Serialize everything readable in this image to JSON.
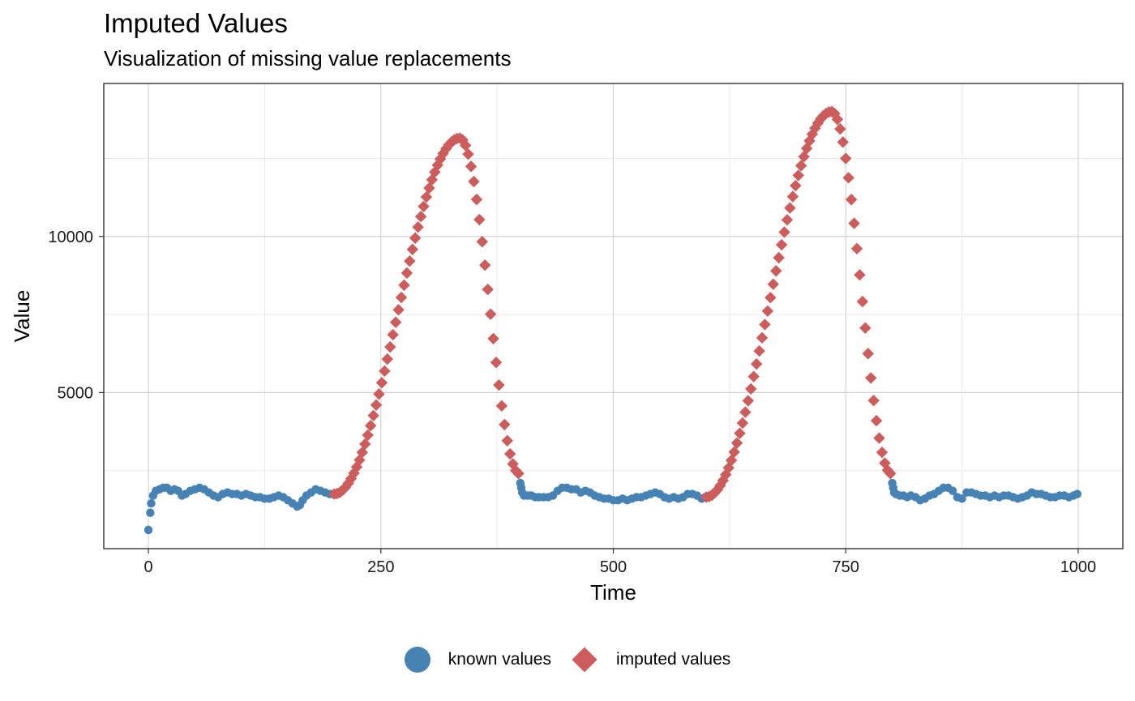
{
  "chart_data": {
    "type": "scatter",
    "title": "Imputed Values",
    "subtitle": "Visualization of missing value replacements",
    "xlabel": "Time",
    "ylabel": "Value",
    "xlim": [
      -48,
      1048
    ],
    "ylim": [
      0,
      14900
    ],
    "xticks": [
      0,
      250,
      500,
      750,
      1000
    ],
    "xtick_labels": [
      "0",
      "250",
      "500",
      "750",
      "1000"
    ],
    "yticks": [
      5000,
      10000
    ],
    "ytick_labels": [
      "5000",
      "10000"
    ],
    "grid": true,
    "legend_position": "bottom",
    "series": [
      {
        "name": "known values",
        "marker": "circle",
        "color": "#4682B4",
        "x": [
          0,
          2,
          3,
          5,
          8,
          12,
          16,
          20,
          24,
          28,
          32,
          36,
          40,
          45,
          50,
          55,
          60,
          65,
          70,
          75,
          80,
          85,
          90,
          95,
          100,
          105,
          110,
          115,
          120,
          125,
          130,
          135,
          140,
          145,
          150,
          155,
          160,
          163,
          166,
          170,
          175,
          180,
          185,
          190,
          195,
          199,
          400,
          401,
          402,
          404,
          408,
          412,
          416,
          420,
          425,
          430,
          435,
          440,
          445,
          450,
          455,
          460,
          465,
          470,
          475,
          480,
          485,
          490,
          495,
          500,
          505,
          510,
          515,
          520,
          525,
          530,
          535,
          540,
          545,
          550,
          555,
          560,
          565,
          570,
          575,
          580,
          585,
          590,
          595,
          599,
          800,
          801,
          802,
          804,
          808,
          812,
          816,
          820,
          825,
          830,
          835,
          840,
          845,
          850,
          855,
          860,
          865,
          870,
          875,
          880,
          885,
          890,
          895,
          900,
          905,
          910,
          915,
          920,
          925,
          930,
          935,
          940,
          945,
          950,
          955,
          960,
          965,
          970,
          975,
          980,
          985,
          990,
          995,
          999
        ],
        "y": [
          600,
          1150,
          1450,
          1700,
          1850,
          1900,
          1950,
          1950,
          1850,
          1900,
          1850,
          1700,
          1750,
          1850,
          1900,
          1950,
          1900,
          1800,
          1700,
          1650,
          1750,
          1800,
          1750,
          1750,
          1700,
          1750,
          1700,
          1650,
          1650,
          1600,
          1600,
          1650,
          1700,
          1650,
          1550,
          1450,
          1350,
          1400,
          1550,
          1700,
          1800,
          1900,
          1850,
          1800,
          1750,
          1750,
          2100,
          1950,
          1800,
          1700,
          1700,
          1700,
          1650,
          1650,
          1650,
          1650,
          1700,
          1850,
          1950,
          1950,
          1900,
          1900,
          1800,
          1850,
          1800,
          1700,
          1650,
          1600,
          1600,
          1550,
          1550,
          1600,
          1550,
          1600,
          1650,
          1650,
          1700,
          1750,
          1800,
          1750,
          1650,
          1600,
          1650,
          1600,
          1650,
          1750,
          1750,
          1700,
          1600,
          1650,
          2100,
          1950,
          1800,
          1750,
          1700,
          1700,
          1650,
          1700,
          1650,
          1550,
          1600,
          1700,
          1750,
          1850,
          1950,
          1950,
          1850,
          1650,
          1600,
          1800,
          1800,
          1750,
          1700,
          1700,
          1650,
          1700,
          1650,
          1700,
          1700,
          1650,
          1600,
          1650,
          1700,
          1800,
          1750,
          1750,
          1700,
          1650,
          1650,
          1700,
          1700,
          1650,
          1700,
          1750
        ]
      },
      {
        "name": "imputed values",
        "marker": "diamond",
        "color": "#CD5C5C",
        "segments": [
          {
            "x_start": 200,
            "x_end": 399,
            "step": 3,
            "base_start": 1750,
            "peak_x": 335,
            "peak_y": 13150,
            "base_end": 2400
          },
          {
            "x_start": 600,
            "x_end": 799,
            "step": 3,
            "base_start": 1650,
            "peak_x": 735,
            "peak_y": 14000,
            "base_end": 2400
          }
        ]
      }
    ]
  },
  "legend": {
    "known_label": "known values",
    "imputed_label": "imputed values"
  }
}
